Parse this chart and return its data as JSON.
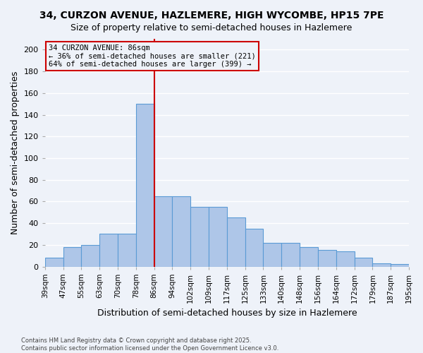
{
  "title1": "34, CURZON AVENUE, HAZLEMERE, HIGH WYCOMBE, HP15 7PE",
  "title2": "Size of property relative to semi-detached houses in Hazlemere",
  "xlabel": "Distribution of semi-detached houses by size in Hazlemere",
  "ylabel": "Number of semi-detached properties",
  "tick_labels": [
    "39sqm",
    "47sqm",
    "55sqm",
    "63sqm",
    "70sqm",
    "78sqm",
    "86sqm",
    "94sqm",
    "102sqm",
    "109sqm",
    "117sqm",
    "125sqm",
    "133sqm",
    "140sqm",
    "148sqm",
    "156sqm",
    "164sqm",
    "172sqm",
    "179sqm",
    "187sqm",
    "195sqm"
  ],
  "values": [
    8,
    18,
    20,
    30,
    30,
    150,
    65,
    65,
    55,
    55,
    45,
    35,
    22,
    22,
    18,
    15,
    14,
    8,
    3,
    2
  ],
  "bar_color": "#aec6e8",
  "bar_edge_color": "#5b9bd5",
  "marker_bin_index": 5,
  "marker_label": "34 CURZON AVENUE: 86sqm",
  "annotation_line1": "← 36% of semi-detached houses are smaller (221)",
  "annotation_line2": "64% of semi-detached houses are larger (399) →",
  "ref_line_color": "#cc0000",
  "box_edge_color": "#cc0000",
  "ylim": [
    0,
    210
  ],
  "yticks": [
    0,
    20,
    40,
    60,
    80,
    100,
    120,
    140,
    160,
    180,
    200
  ],
  "footnote1": "Contains HM Land Registry data © Crown copyright and database right 2025.",
  "footnote2": "Contains public sector information licensed under the Open Government Licence v3.0.",
  "bg_color": "#eef2f9",
  "grid_color": "#ffffff",
  "title_fontsize": 10,
  "subtitle_fontsize": 9,
  "axis_label_fontsize": 9
}
